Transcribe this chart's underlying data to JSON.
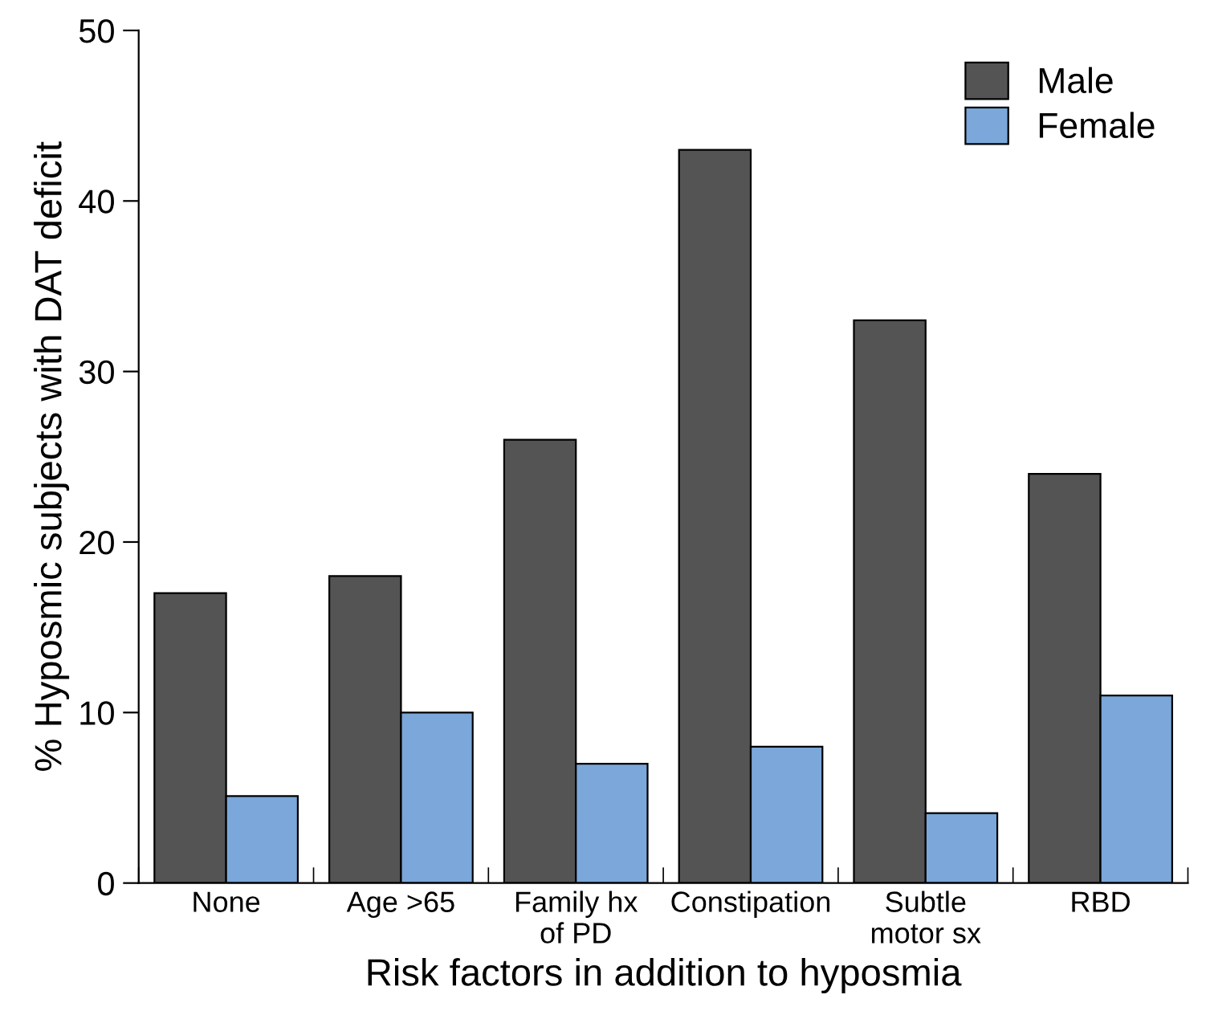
{
  "chart_data": {
    "type": "bar",
    "xlabel": "Risk factors in addition to hyposmia",
    "ylabel": "% Hyposmic subjects with DAT deficit",
    "categories": [
      "None",
      "Age >65",
      "Family hx\nof PD",
      "Constipation",
      "Subtle\nmotor sx",
      "RBD"
    ],
    "series": [
      {
        "name": "Male",
        "color": "#545454",
        "values": [
          17,
          18,
          26,
          43,
          33,
          24
        ]
      },
      {
        "name": "Female",
        "color": "#7ba7da",
        "values": [
          5.1,
          10,
          7,
          8,
          4.1,
          11
        ]
      }
    ],
    "ylim": [
      0,
      50
    ],
    "yticks": [
      0,
      10,
      20,
      30,
      40,
      50
    ],
    "grid": false,
    "legend": "top right"
  }
}
